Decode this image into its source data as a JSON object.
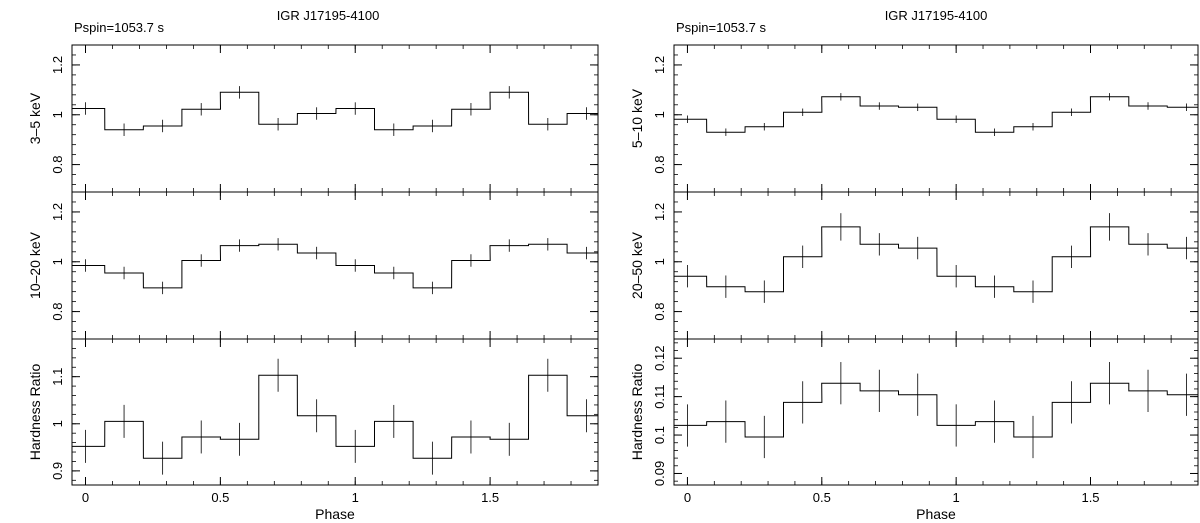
{
  "chart_data": [
    {
      "type": "step",
      "title": "IGR J17195-4100",
      "annotation": "Pspin=1053.7 s",
      "xlabel": "Phase",
      "xlim": [
        -0.05,
        1.9
      ],
      "xticks": [
        0,
        0.5,
        1,
        1.5
      ],
      "xtick_labels": [
        "0",
        "0.5",
        "1",
        "1.5"
      ],
      "panels": [
        {
          "ylabel": "3–5 keV",
          "ylim": [
            0.69,
            1.28
          ],
          "yticks": [
            0.8,
            1,
            1.2
          ],
          "ytick_labels": [
            "0.8",
            "1",
            "1.2"
          ],
          "x": [
            0.0,
            0.143,
            0.286,
            0.429,
            0.571,
            0.714,
            0.857,
            1.0,
            1.143,
            1.286,
            1.429,
            1.571,
            1.714,
            1.857
          ],
          "values": [
            1.025,
            0.94,
            0.955,
            1.022,
            1.09,
            0.962,
            1.005,
            1.025,
            0.94,
            0.955,
            1.022,
            1.09,
            0.962,
            1.005
          ],
          "errors": [
            0.025,
            0.025,
            0.025,
            0.025,
            0.025,
            0.025,
            0.025,
            0.025,
            0.025,
            0.025,
            0.025,
            0.025,
            0.025,
            0.025
          ]
        },
        {
          "ylabel": "10–20 keV",
          "ylim": [
            0.69,
            1.28
          ],
          "yticks": [
            0.8,
            1,
            1.2
          ],
          "ytick_labels": [
            "0.8",
            "1",
            "1.2"
          ],
          "x": [
            0.0,
            0.143,
            0.286,
            0.429,
            0.571,
            0.714,
            0.857,
            1.0,
            1.143,
            1.286,
            1.429,
            1.571,
            1.714,
            1.857
          ],
          "values": [
            0.985,
            0.955,
            0.895,
            1.005,
            1.065,
            1.07,
            1.035,
            0.985,
            0.955,
            0.895,
            1.005,
            1.065,
            1.07,
            1.035
          ],
          "errors": [
            0.025,
            0.025,
            0.025,
            0.025,
            0.025,
            0.025,
            0.025,
            0.025,
            0.025,
            0.025,
            0.025,
            0.025,
            0.025,
            0.025
          ]
        },
        {
          "ylabel": "Hardness Ratio",
          "ylim": [
            0.87,
            1.18
          ],
          "yticks": [
            0.9,
            1,
            1.1
          ],
          "ytick_labels": [
            "0.9",
            "1",
            "1.1"
          ],
          "x": [
            0.0,
            0.143,
            0.286,
            0.429,
            0.571,
            0.714,
            0.857,
            1.0,
            1.143,
            1.286,
            1.429,
            1.571,
            1.714,
            1.857
          ],
          "values": [
            0.952,
            1.005,
            0.927,
            0.972,
            0.967,
            1.103,
            1.017,
            0.952,
            1.005,
            0.927,
            0.972,
            0.967,
            1.103,
            1.017
          ],
          "errors": [
            0.035,
            0.035,
            0.035,
            0.035,
            0.035,
            0.035,
            0.035,
            0.035,
            0.035,
            0.035,
            0.035,
            0.035,
            0.035,
            0.035
          ]
        }
      ]
    },
    {
      "type": "step",
      "title": "IGR J17195-4100",
      "annotation": "Pspin=1053.7 s",
      "xlabel": "Phase",
      "xlim": [
        -0.05,
        1.9
      ],
      "xticks": [
        0,
        0.5,
        1,
        1.5
      ],
      "xtick_labels": [
        "0",
        "0.5",
        "1",
        "1.5"
      ],
      "panels": [
        {
          "ylabel": "5–10 keV",
          "ylim": [
            0.69,
            1.28
          ],
          "yticks": [
            0.8,
            1,
            1.2
          ],
          "ytick_labels": [
            "0.8",
            "1",
            "1.2"
          ],
          "x": [
            0.0,
            0.143,
            0.286,
            0.429,
            0.571,
            0.714,
            0.857,
            1.0,
            1.143,
            1.286,
            1.429,
            1.571,
            1.714,
            1.857
          ],
          "values": [
            0.982,
            0.93,
            0.952,
            1.01,
            1.072,
            1.035,
            1.03,
            0.982,
            0.93,
            0.952,
            1.01,
            1.072,
            1.035,
            1.03
          ],
          "errors": [
            0.015,
            0.015,
            0.015,
            0.015,
            0.015,
            0.015,
            0.015,
            0.015,
            0.015,
            0.015,
            0.015,
            0.015,
            0.015,
            0.015
          ]
        },
        {
          "ylabel": "20–50 keV",
          "ylim": [
            0.69,
            1.28
          ],
          "yticks": [
            0.8,
            1,
            1.2
          ],
          "ytick_labels": [
            "0.8",
            "1",
            "1.2"
          ],
          "x": [
            0.0,
            0.143,
            0.286,
            0.429,
            0.571,
            0.714,
            0.857,
            1.0,
            1.143,
            1.286,
            1.429,
            1.571,
            1.714,
            1.857
          ],
          "values": [
            0.942,
            0.9,
            0.88,
            1.02,
            1.14,
            1.07,
            1.055,
            0.942,
            0.9,
            0.88,
            1.02,
            1.14,
            1.07,
            1.055
          ],
          "errors": [
            0.045,
            0.045,
            0.045,
            0.045,
            0.055,
            0.045,
            0.045,
            0.045,
            0.045,
            0.045,
            0.045,
            0.055,
            0.045,
            0.045
          ]
        },
        {
          "ylabel": "Hardness Ratio",
          "ylim": [
            0.087,
            0.125
          ],
          "yticks": [
            0.09,
            0.1,
            0.11,
            0.12
          ],
          "ytick_labels": [
            "0.09",
            "0.1",
            "0.11",
            "0.12"
          ],
          "x": [
            0.0,
            0.143,
            0.286,
            0.429,
            0.571,
            0.714,
            0.857,
            1.0,
            1.143,
            1.286,
            1.429,
            1.571,
            1.714,
            1.857
          ],
          "values": [
            0.1025,
            0.1035,
            0.0995,
            0.1085,
            0.1135,
            0.1115,
            0.1105,
            0.1025,
            0.1035,
            0.0995,
            0.1085,
            0.1135,
            0.1115,
            0.1105
          ],
          "errors": [
            0.0055,
            0.0055,
            0.0055,
            0.0055,
            0.0055,
            0.0055,
            0.0055,
            0.0055,
            0.0055,
            0.0055,
            0.0055,
            0.0055,
            0.0055,
            0.0055
          ]
        }
      ]
    }
  ]
}
